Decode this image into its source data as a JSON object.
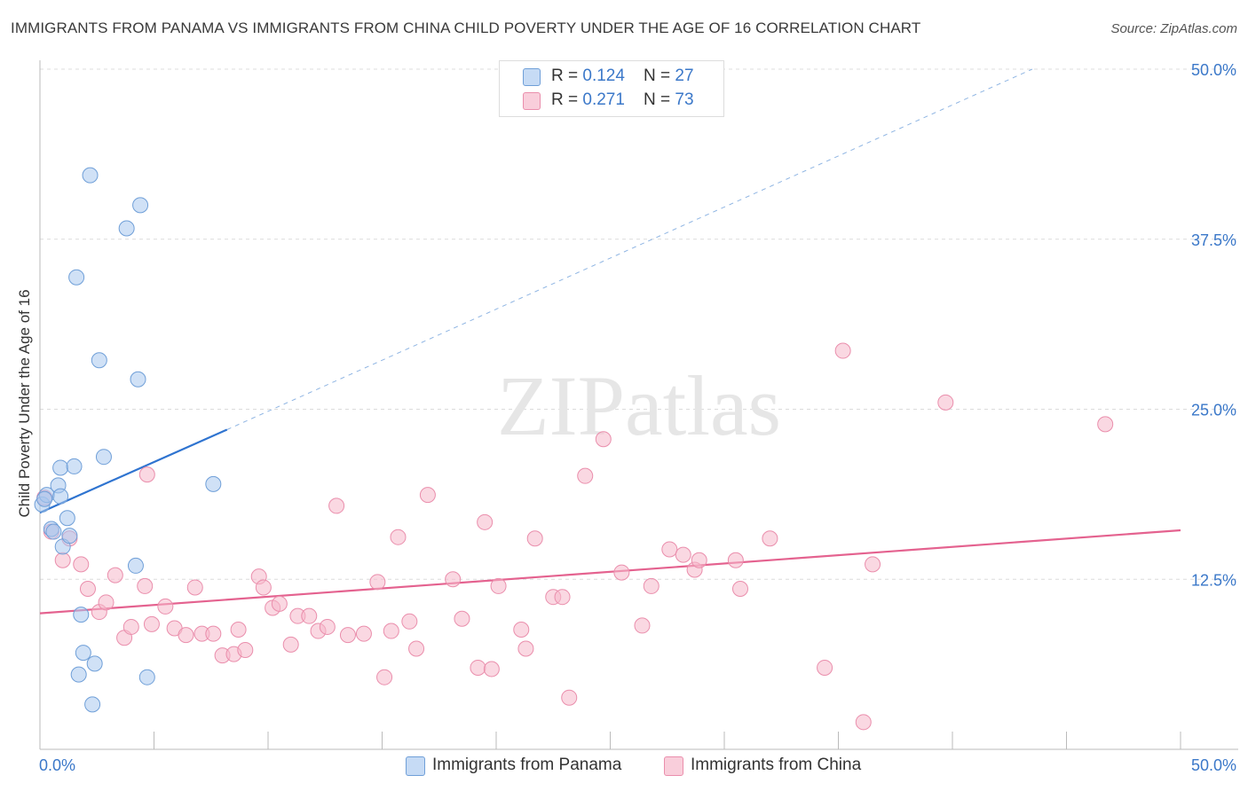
{
  "title": "IMMIGRANTS FROM PANAMA VS IMMIGRANTS FROM CHINA CHILD POVERTY UNDER THE AGE OF 16 CORRELATION CHART",
  "source": "Source: ZipAtlas.com",
  "watermark": "ZIPatlas",
  "legend": {
    "rows": [
      {
        "r_label": "R = ",
        "r_value": "0.124",
        "n_label": "N = ",
        "n_value": "27"
      },
      {
        "r_label": "R = ",
        "r_value": "0.271",
        "n_label": "N = ",
        "n_value": "73"
      }
    ]
  },
  "colors": {
    "panama_fill": "#a9c8ee",
    "panama_stroke": "#6f9fd8",
    "panama_line": "#2f74d0",
    "china_fill": "#f6b8cb",
    "china_stroke": "#ea8eac",
    "china_line": "#e4628f",
    "tick_label": "#3b78c9",
    "grid": "#dcdcdc"
  },
  "chart_data": {
    "type": "scatter",
    "title": "IMMIGRANTS FROM PANAMA VS IMMIGRANTS FROM CHINA CHILD POVERTY UNDER THE AGE OF 16 CORRELATION CHART",
    "xlabel": "",
    "ylabel": "Child Poverty Under the Age of 16",
    "xlim": [
      0,
      50
    ],
    "ylim": [
      0,
      50
    ],
    "x_tick_labels": [
      "0.0%",
      "50.0%"
    ],
    "y_ticks": [
      12.5,
      25.0,
      37.5,
      50.0
    ],
    "y_tick_labels": [
      "12.5%",
      "25.0%",
      "37.5%",
      "50.0%"
    ],
    "grid": true,
    "series": [
      {
        "name": "Immigrants from Panama",
        "r": 0.124,
        "n": 27,
        "points": [
          [
            0.1,
            18.0
          ],
          [
            0.3,
            18.7
          ],
          [
            0.5,
            16.2
          ],
          [
            0.6,
            16.0
          ],
          [
            0.8,
            19.4
          ],
          [
            0.9,
            18.6
          ],
          [
            0.9,
            20.7
          ],
          [
            1.0,
            14.9
          ],
          [
            1.2,
            17.0
          ],
          [
            1.3,
            15.7
          ],
          [
            1.5,
            20.8
          ],
          [
            1.6,
            34.7
          ],
          [
            1.7,
            5.5
          ],
          [
            1.8,
            9.9
          ],
          [
            1.9,
            7.1
          ],
          [
            2.2,
            42.2
          ],
          [
            2.3,
            3.3
          ],
          [
            2.4,
            6.3
          ],
          [
            2.6,
            28.6
          ],
          [
            2.8,
            21.5
          ],
          [
            3.8,
            38.3
          ],
          [
            4.2,
            13.5
          ],
          [
            4.3,
            27.2
          ],
          [
            4.4,
            40.0
          ],
          [
            4.7,
            5.3
          ],
          [
            7.6,
            19.5
          ],
          [
            0.2,
            18.4
          ]
        ],
        "trend": {
          "x0": 0,
          "y0": 17.4,
          "x1": 8.2,
          "y1": 23.5,
          "dashed_to": [
            43.5,
            50.0
          ]
        }
      },
      {
        "name": "Immigrants from China",
        "r": 0.271,
        "n": 73,
        "points": [
          [
            0.2,
            18.5
          ],
          [
            0.5,
            16.0
          ],
          [
            1.0,
            13.9
          ],
          [
            1.3,
            15.5
          ],
          [
            1.8,
            13.6
          ],
          [
            2.1,
            11.8
          ],
          [
            2.6,
            10.1
          ],
          [
            2.9,
            10.8
          ],
          [
            3.3,
            12.8
          ],
          [
            3.7,
            8.2
          ],
          [
            4.0,
            9.0
          ],
          [
            4.6,
            12.0
          ],
          [
            4.7,
            20.2
          ],
          [
            4.9,
            9.2
          ],
          [
            5.5,
            10.5
          ],
          [
            5.9,
            8.9
          ],
          [
            6.4,
            8.4
          ],
          [
            6.8,
            11.9
          ],
          [
            7.1,
            8.5
          ],
          [
            7.6,
            8.5
          ],
          [
            8.0,
            6.9
          ],
          [
            8.5,
            7.0
          ],
          [
            8.7,
            8.8
          ],
          [
            9.0,
            7.3
          ],
          [
            9.6,
            12.7
          ],
          [
            9.8,
            11.9
          ],
          [
            10.2,
            10.4
          ],
          [
            10.5,
            10.7
          ],
          [
            11.0,
            7.7
          ],
          [
            11.3,
            9.8
          ],
          [
            11.8,
            9.8
          ],
          [
            12.2,
            8.7
          ],
          [
            12.6,
            9.0
          ],
          [
            13.0,
            17.9
          ],
          [
            13.5,
            8.4
          ],
          [
            14.2,
            8.5
          ],
          [
            14.8,
            12.3
          ],
          [
            15.1,
            5.3
          ],
          [
            15.4,
            8.7
          ],
          [
            15.7,
            15.6
          ],
          [
            16.2,
            9.4
          ],
          [
            16.5,
            7.4
          ],
          [
            17.0,
            18.7
          ],
          [
            18.1,
            12.5
          ],
          [
            18.5,
            9.6
          ],
          [
            19.2,
            6.0
          ],
          [
            19.5,
            16.7
          ],
          [
            19.8,
            5.9
          ],
          [
            20.1,
            12.0
          ],
          [
            21.1,
            8.8
          ],
          [
            21.3,
            7.4
          ],
          [
            21.7,
            15.5
          ],
          [
            22.5,
            11.2
          ],
          [
            22.9,
            11.2
          ],
          [
            23.2,
            3.8
          ],
          [
            23.9,
            20.1
          ],
          [
            24.7,
            22.8
          ],
          [
            25.5,
            13.0
          ],
          [
            26.4,
            9.1
          ],
          [
            26.8,
            12.0
          ],
          [
            27.6,
            14.7
          ],
          [
            28.2,
            14.3
          ],
          [
            28.7,
            13.2
          ],
          [
            28.9,
            13.9
          ],
          [
            30.5,
            13.9
          ],
          [
            30.7,
            11.8
          ],
          [
            32.0,
            15.5
          ],
          [
            34.4,
            6.0
          ],
          [
            35.2,
            29.3
          ],
          [
            36.1,
            2.0
          ],
          [
            36.5,
            13.6
          ],
          [
            39.7,
            25.5
          ],
          [
            46.7,
            23.9
          ]
        ],
        "trend": {
          "x0": 0,
          "y0": 10.0,
          "x1": 50,
          "y1": 16.1
        }
      }
    ]
  },
  "bottom_legend": [
    "Immigrants from Panama",
    "Immigrants from China"
  ]
}
